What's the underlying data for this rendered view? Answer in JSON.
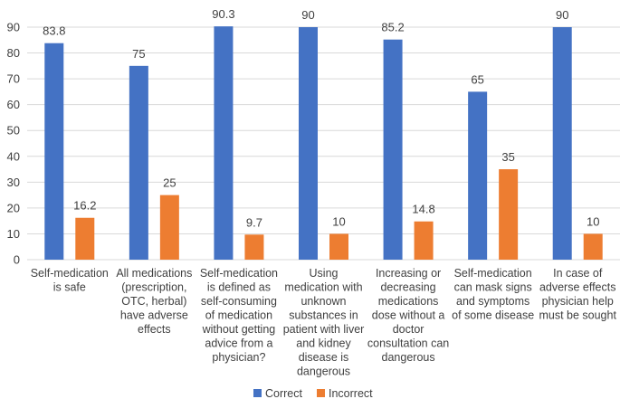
{
  "chart_data": {
    "type": "bar",
    "title": "",
    "xlabel": "",
    "ylabel": "",
    "ylim": [
      0,
      90
    ],
    "yticks": [
      "0",
      "10",
      "20",
      "30",
      "40",
      "50",
      "60",
      "70",
      "80",
      "90"
    ],
    "grid": true,
    "legend_position": "bottom",
    "categories": [
      [
        "Self-medication",
        "is safe"
      ],
      [
        "All medications",
        "(prescription,",
        "OTC, herbal)",
        "have adverse",
        "effects"
      ],
      [
        "Self-medication",
        "is defined as",
        "self-consuming",
        "of medication",
        "without getting",
        "advice from a",
        "physician?"
      ],
      [
        "Using",
        "medication with",
        "unknown",
        "substances in",
        "patient with liver",
        "and kidney",
        "disease is",
        "dangerous"
      ],
      [
        "Increasing or",
        "decreasing",
        "medications",
        "dose without a",
        "doctor",
        "consultation can",
        "dangerous"
      ],
      [
        "Self-medication",
        "can mask signs",
        "and symptoms",
        "of some disease"
      ],
      [
        "In case of",
        "adverse effects",
        "physician help",
        "must be sought"
      ]
    ],
    "series": [
      {
        "name": "Correct",
        "color": "#4472c4",
        "values": [
          83.8,
          75,
          90.3,
          90,
          85.2,
          65,
          90
        ],
        "labels": [
          "83.8",
          "75",
          "90.3",
          "90",
          "85.2",
          "65",
          "90"
        ]
      },
      {
        "name": "Incorrect",
        "color": "#ed7d31",
        "values": [
          16.2,
          25,
          9.7,
          10,
          14.8,
          35,
          10
        ],
        "labels": [
          "16.2",
          "25",
          "9.7",
          "10",
          "14.8",
          "35",
          "10"
        ]
      }
    ]
  }
}
